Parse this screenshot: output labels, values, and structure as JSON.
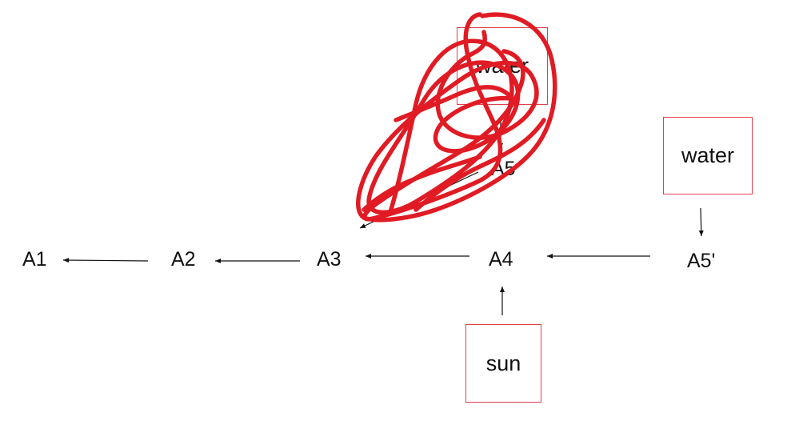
{
  "diagram": {
    "nodes": {
      "a1": "A1",
      "a2": "A2",
      "a3": "A3",
      "a4": "A4",
      "a5_prime": "A5'",
      "a5_crossed": "A5"
    },
    "boxes": {
      "water_right": "water",
      "water_crossed": "water",
      "sun": "sun"
    },
    "edges": [
      {
        "from": "A2",
        "to": "A1"
      },
      {
        "from": "A3",
        "to": "A2"
      },
      {
        "from": "A4",
        "to": "A3"
      },
      {
        "from": "A5'",
        "to": "A4"
      },
      {
        "from": "water",
        "to": "A5'"
      },
      {
        "from": "sun",
        "to": "A4"
      },
      {
        "from": "water",
        "to": "A5",
        "crossed_out": true
      },
      {
        "from": "A5",
        "to": "A3",
        "crossed_out": true
      }
    ],
    "colors": {
      "box_border": "#e0404a",
      "scribble": "#e01b24",
      "arrow": "#111111"
    }
  }
}
